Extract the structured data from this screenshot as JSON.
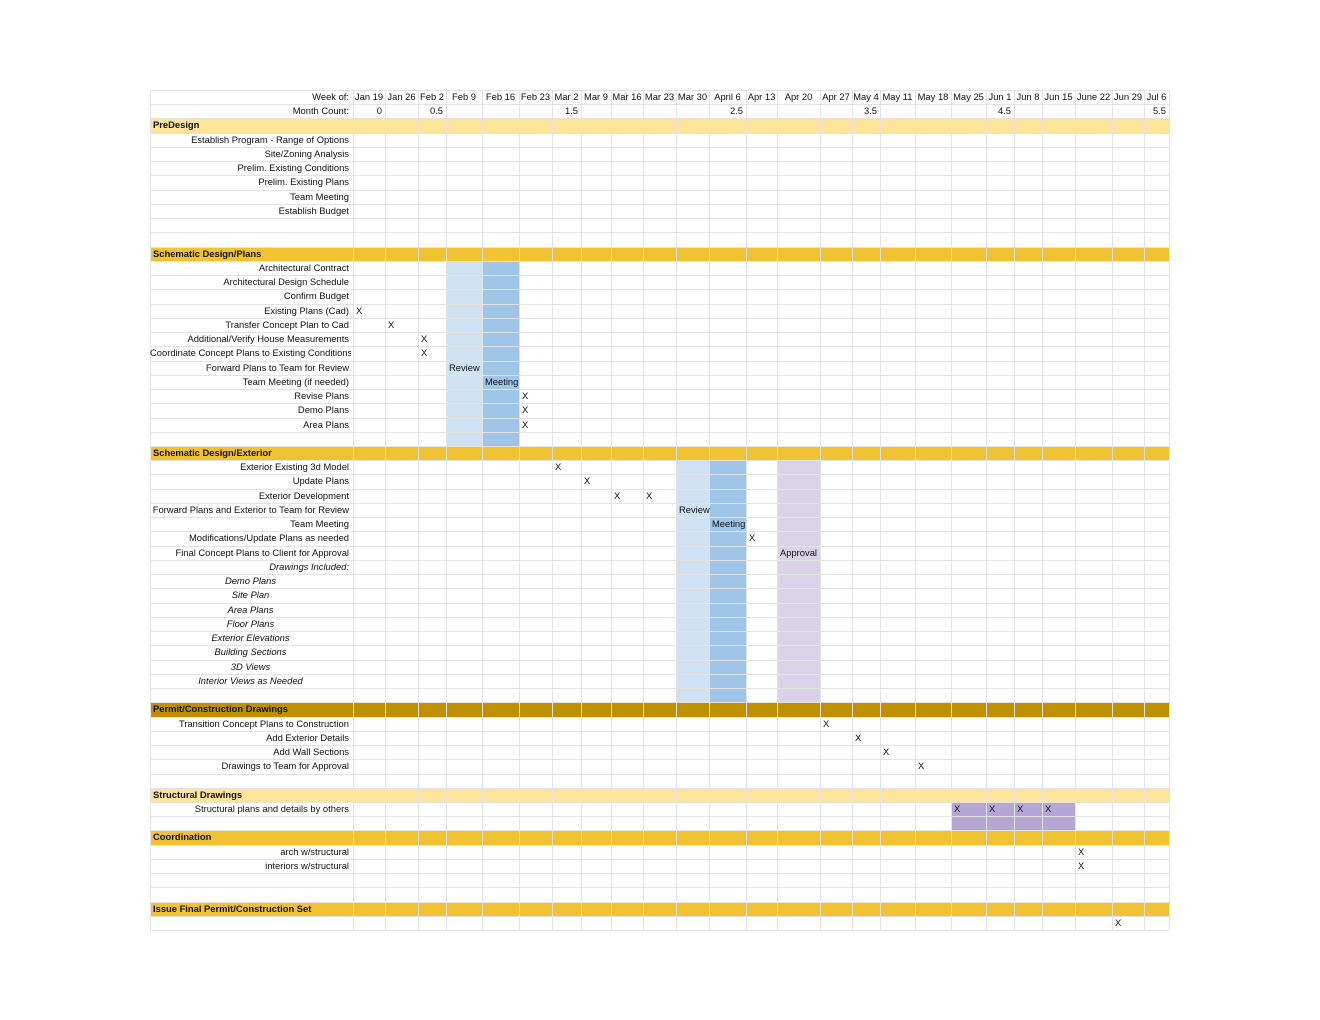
{
  "colors": {
    "section_light": "#fde49a",
    "section_mid": "#f1c232",
    "section_dark": "#bf9000",
    "review_band": "#cfe2f3",
    "meeting_band": "#9fc5e8",
    "approval_band": "#d9d2e9",
    "structural_band": "#b4a7d6"
  },
  "header": {
    "week_label": "Week of:",
    "weeks": [
      "Jan 19",
      "Jan 26",
      "Feb 2",
      "Feb 9",
      "Feb 16",
      "Feb 23",
      "Mar 2",
      "Mar 9",
      "Mar 16",
      "Mar 23",
      "Mar 30",
      "April 6",
      "Apr 13",
      "Apr 20",
      "Apr 27",
      "May 4",
      "May 11",
      "May 18",
      "May 25",
      "Jun 1",
      "Jun 8",
      "Jun 15",
      "June 22",
      "Jun 29",
      "Jul 6"
    ],
    "month_label": "Month Count:",
    "month_counts": [
      {
        "col": 0,
        "value": "0"
      },
      {
        "col": 2,
        "value": "0.5"
      },
      {
        "col": 6,
        "value": "1.5"
      },
      {
        "col": 11,
        "value": "2.5"
      },
      {
        "col": 15,
        "value": "3.5"
      },
      {
        "col": 19,
        "value": "4.5"
      },
      {
        "col": 24,
        "value": "5.5"
      }
    ]
  },
  "rows": [
    {
      "type": "section",
      "label": "PreDesign",
      "shade": "light"
    },
    {
      "type": "task",
      "label": "Establish Program - Range of Options",
      "marks": []
    },
    {
      "type": "task",
      "label": "Site/Zoning Analysis",
      "marks": []
    },
    {
      "type": "task",
      "label": "Prelim. Existing Conditions",
      "marks": []
    },
    {
      "type": "task",
      "label": "Prelim. Existing Plans",
      "marks": []
    },
    {
      "type": "task",
      "label": "Team Meeting",
      "marks": []
    },
    {
      "type": "task",
      "label": "Establish Budget",
      "marks": []
    },
    {
      "type": "blank"
    },
    {
      "type": "blank"
    },
    {
      "type": "section",
      "label": "Schematic Design/Plans",
      "shade": "mid"
    },
    {
      "type": "task",
      "label": "Architectural Contract",
      "marks": []
    },
    {
      "type": "task",
      "label": "Architectural Design Schedule",
      "marks": []
    },
    {
      "type": "task",
      "label": "Confirm Budget",
      "marks": []
    },
    {
      "type": "task",
      "label": "Existing Plans (Cad)",
      "marks": [
        {
          "col": 0,
          "text": "X"
        }
      ]
    },
    {
      "type": "task",
      "label": "Transfer Concept Plan to Cad",
      "marks": [
        {
          "col": 1,
          "text": "X"
        }
      ]
    },
    {
      "type": "task",
      "label": "Additional/Verify House Measurements",
      "marks": [
        {
          "col": 2,
          "text": "X"
        }
      ]
    },
    {
      "type": "task",
      "label": "Coordinate Concept Plans to Existing Conditions",
      "marks": [
        {
          "col": 2,
          "text": "X"
        }
      ]
    },
    {
      "type": "task",
      "label": "Forward Plans to Team for Review",
      "marks": [
        {
          "col": 3,
          "text": "Review"
        }
      ]
    },
    {
      "type": "task",
      "label": "Team Meeting (if needed)",
      "marks": [
        {
          "col": 4,
          "text": "Meeting"
        }
      ]
    },
    {
      "type": "task",
      "label": "Revise Plans",
      "marks": [
        {
          "col": 5,
          "text": "X"
        }
      ]
    },
    {
      "type": "task",
      "label": "Demo Plans",
      "marks": [
        {
          "col": 5,
          "text": "X"
        }
      ]
    },
    {
      "type": "task",
      "label": "Area Plans",
      "marks": [
        {
          "col": 5,
          "text": "X"
        }
      ]
    },
    {
      "type": "blank"
    },
    {
      "type": "section",
      "label": "Schematic Design/Exterior",
      "shade": "mid"
    },
    {
      "type": "task",
      "label": "Exterior Existing 3d Model",
      "marks": [
        {
          "col": 6,
          "text": "X"
        }
      ]
    },
    {
      "type": "task",
      "label": "Update Plans",
      "marks": [
        {
          "col": 7,
          "text": "X"
        }
      ]
    },
    {
      "type": "task",
      "label": "Exterior Development",
      "marks": [
        {
          "col": 8,
          "text": "X"
        },
        {
          "col": 9,
          "text": "X"
        }
      ]
    },
    {
      "type": "task",
      "label": "Forward Plans and Exterior to Team for Review",
      "marks": [
        {
          "col": 10,
          "text": "Review"
        }
      ]
    },
    {
      "type": "task",
      "label": "Team Meeting",
      "marks": [
        {
          "col": 11,
          "text": "Meeting"
        }
      ]
    },
    {
      "type": "task",
      "label": "Modifications/Update Plans as needed",
      "marks": [
        {
          "col": 12,
          "text": "X"
        }
      ]
    },
    {
      "type": "task",
      "label": "Final Concept Plans to Client for Approval",
      "marks": [
        {
          "col": 13,
          "text": "Approval"
        }
      ]
    },
    {
      "type": "task",
      "label": "Drawings Included:",
      "italic": true,
      "marks": []
    },
    {
      "type": "task",
      "label": "Demo Plans",
      "italic": true,
      "indent": true,
      "marks": []
    },
    {
      "type": "task",
      "label": "Site Plan",
      "italic": true,
      "indent": true,
      "marks": []
    },
    {
      "type": "task",
      "label": "Area Plans",
      "italic": true,
      "indent": true,
      "marks": []
    },
    {
      "type": "task",
      "label": "Floor Plans",
      "italic": true,
      "indent": true,
      "marks": []
    },
    {
      "type": "task",
      "label": "Exterior Elevations",
      "italic": true,
      "indent": true,
      "marks": []
    },
    {
      "type": "task",
      "label": "Building Sections",
      "italic": true,
      "indent": true,
      "marks": []
    },
    {
      "type": "task",
      "label": "3D Views",
      "italic": true,
      "indent": true,
      "marks": []
    },
    {
      "type": "task",
      "label": "Interior Views as Needed",
      "italic": true,
      "indent": true,
      "marks": []
    },
    {
      "type": "blank"
    },
    {
      "type": "section",
      "label": "Permit/Construction Drawings",
      "shade": "dark"
    },
    {
      "type": "task",
      "label": "Transition Concept Plans to Construction",
      "marks": [
        {
          "col": 14,
          "text": "X"
        }
      ]
    },
    {
      "type": "task",
      "label": "Add Exterior Details",
      "marks": [
        {
          "col": 15,
          "text": "X"
        }
      ]
    },
    {
      "type": "task",
      "label": "Add Wall Sections",
      "marks": [
        {
          "col": 16,
          "text": "X"
        }
      ]
    },
    {
      "type": "task",
      "label": "Drawings to Team for Approval",
      "marks": [
        {
          "col": 17,
          "text": "X"
        }
      ]
    },
    {
      "type": "blank"
    },
    {
      "type": "section",
      "label": "Structural Drawings",
      "shade": "light"
    },
    {
      "type": "task",
      "label": "Structural plans and details by others",
      "marks": [
        {
          "col": 18,
          "text": "X"
        },
        {
          "col": 19,
          "text": "X"
        },
        {
          "col": 20,
          "text": "X"
        },
        {
          "col": 21,
          "text": "X"
        }
      ]
    },
    {
      "type": "blank"
    },
    {
      "type": "section",
      "label": "Coordination",
      "shade": "mid"
    },
    {
      "type": "task",
      "label": "arch w/structural",
      "marks": [
        {
          "col": 22,
          "text": "X"
        }
      ]
    },
    {
      "type": "task",
      "label": "interiors w/structural",
      "marks": [
        {
          "col": 22,
          "text": "X"
        }
      ]
    },
    {
      "type": "blank"
    },
    {
      "type": "blank"
    },
    {
      "type": "section",
      "label": "Issue Final Permit/Construction Set",
      "shade": "mid"
    },
    {
      "type": "task",
      "label": "",
      "marks": [
        {
          "col": 23,
          "text": "X"
        }
      ]
    }
  ],
  "bands": [
    {
      "col_start": 3,
      "col_end": 3,
      "row_start": 10,
      "row_end": 22,
      "color": "review_band"
    },
    {
      "col_start": 4,
      "col_end": 4,
      "row_start": 10,
      "row_end": 22,
      "color": "meeting_band"
    },
    {
      "col_start": 10,
      "col_end": 10,
      "row_start": 24,
      "row_end": 40,
      "color": "review_band"
    },
    {
      "col_start": 11,
      "col_end": 11,
      "row_start": 24,
      "row_end": 40,
      "color": "meeting_band"
    },
    {
      "col_start": 13,
      "col_end": 13,
      "row_start": 24,
      "row_end": 40,
      "color": "approval_band"
    },
    {
      "col_start": 18,
      "col_end": 21,
      "row_start": 48,
      "row_end": 49,
      "color": "structural_band"
    }
  ]
}
